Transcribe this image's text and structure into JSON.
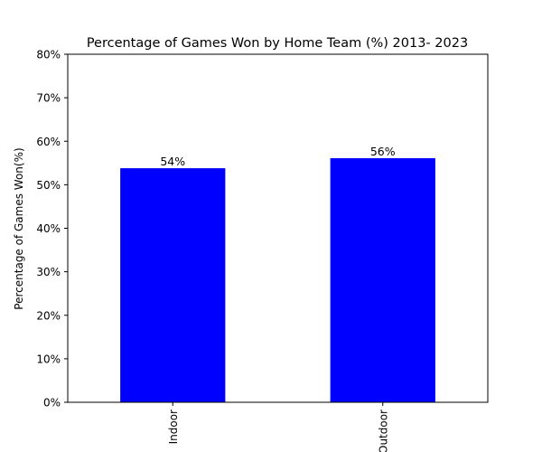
{
  "chart_data": {
    "type": "bar",
    "title": "Percentage of Games Won by Home Team (%) 2013- 2023",
    "xlabel": "",
    "ylabel": "Percentage of Games Won(%)",
    "categories": [
      "Indoor",
      "Outdoor"
    ],
    "values": [
      53.8,
      56.1
    ],
    "data_labels": [
      "54%",
      "56%"
    ],
    "ylim": [
      0,
      80
    ],
    "yticks": [
      "0%",
      "10%",
      "20%",
      "30%",
      "40%",
      "50%",
      "60%",
      "70%",
      "80%"
    ],
    "bar_color": "#0000ff",
    "grid": false,
    "legend": "none"
  }
}
